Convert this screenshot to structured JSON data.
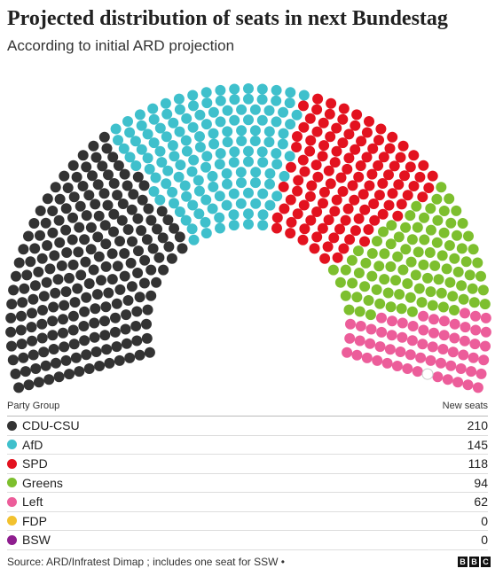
{
  "title": "Projected distribution of seats in next Bundestag",
  "subtitle": "According to initial ARD projection",
  "chart_data": {
    "type": "hemicycle",
    "total_seats": 630,
    "series": [
      {
        "name": "CDU-CSU",
        "values": [
          210
        ],
        "color": "#333333"
      },
      {
        "name": "AfD",
        "values": [
          145
        ],
        "color": "#3FC0CC"
      },
      {
        "name": "SPD",
        "values": [
          118
        ],
        "color": "#E3121F"
      },
      {
        "name": "Greens",
        "values": [
          94
        ],
        "color": "#7DBF2E"
      },
      {
        "name": "Left",
        "values": [
          62
        ],
        "color": "#EC5D9A"
      },
      {
        "name": "FDP",
        "values": [
          0
        ],
        "color": "#F2C12E"
      },
      {
        "name": "BSW",
        "values": [
          0
        ],
        "color": "#8E1D8E"
      }
    ],
    "empty_seat_color": "#ffffff"
  },
  "table": {
    "col_party": "Party Group",
    "col_seats": "New seats",
    "rows": [
      {
        "party": "CDU-CSU",
        "seats": "210",
        "color": "#333333"
      },
      {
        "party": "AfD",
        "seats": "145",
        "color": "#3FC0CC"
      },
      {
        "party": "SPD",
        "seats": "118",
        "color": "#E3121F"
      },
      {
        "party": "Greens",
        "seats": "94",
        "color": "#7DBF2E"
      },
      {
        "party": "Left",
        "seats": "62",
        "color": "#EC5D9A"
      },
      {
        "party": "FDP",
        "seats": "0",
        "color": "#F2C12E"
      },
      {
        "party": "BSW",
        "seats": "0",
        "color": "#8E1D8E"
      }
    ]
  },
  "source": "Source: ARD/Infratest Dimap ; includes one seat for SSW •",
  "logo": [
    "B",
    "B",
    "C"
  ]
}
